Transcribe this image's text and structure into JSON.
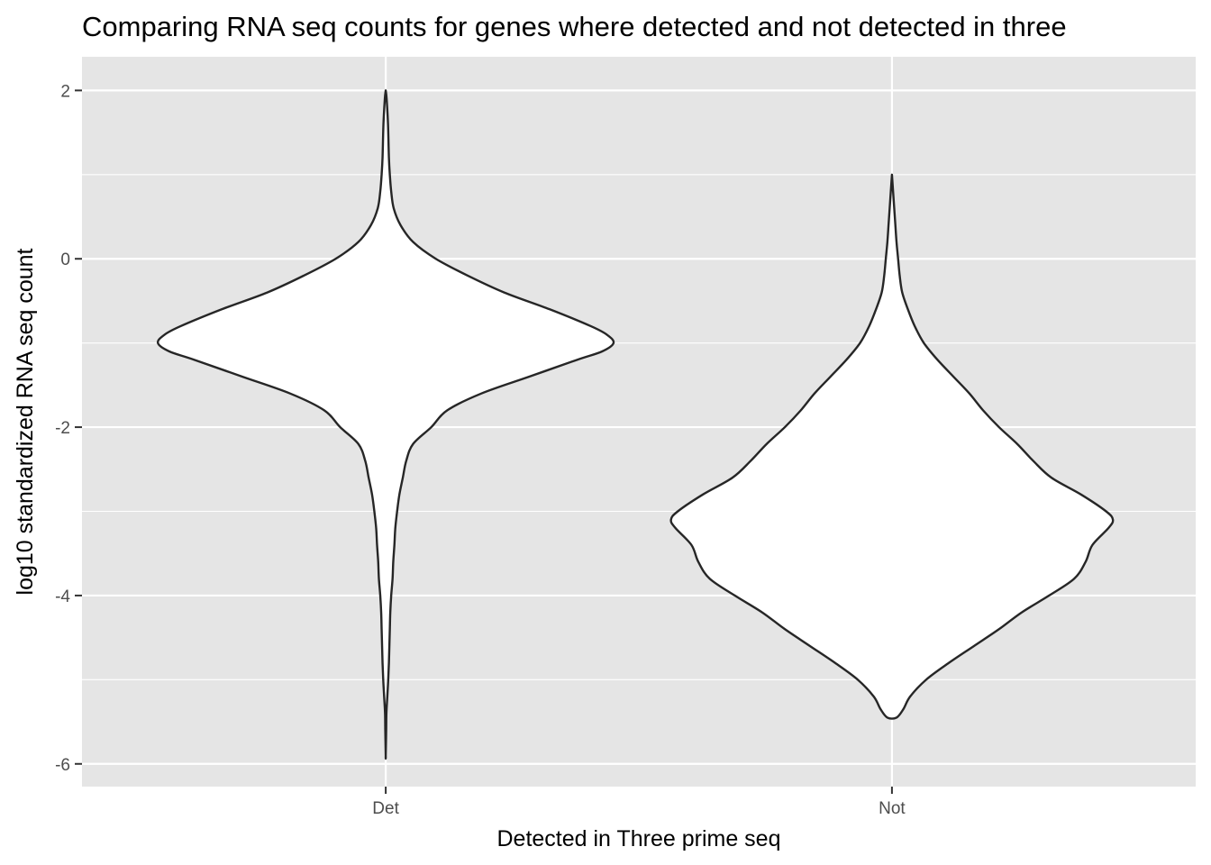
{
  "chart_data": {
    "type": "violin",
    "title": "Comparing RNA seq counts for genes where detected and not detected in three",
    "xlabel": "Detected in Three prime seq",
    "ylabel": "log10 standardized RNA seq count",
    "categories": [
      "Det",
      "Not"
    ],
    "y_ticks": [
      2,
      0,
      -2,
      -4,
      -6
    ],
    "y_tick_labels": [
      "2",
      "0",
      "-2",
      "-4",
      "-6"
    ],
    "ylim": [
      -6.27,
      2.4
    ],
    "grid": true,
    "legend": "none",
    "colors": {
      "panel": "#e5e5e5",
      "grid": "#ffffff",
      "violin_fill": "#ffffff",
      "violin_outline": "#262626",
      "tick_text": "#4d4d4d"
    },
    "series": [
      {
        "category": "Det",
        "min": -5.9,
        "max": 2.0,
        "profile_relative_width": [
          [
            2.0,
            0.0
          ],
          [
            1.9,
            0.004
          ],
          [
            1.6,
            0.01
          ],
          [
            1.2,
            0.014
          ],
          [
            1.0,
            0.018
          ],
          [
            0.8,
            0.024
          ],
          [
            0.6,
            0.035
          ],
          [
            0.4,
            0.065
          ],
          [
            0.2,
            0.12
          ],
          [
            0.0,
            0.22
          ],
          [
            -0.2,
            0.36
          ],
          [
            -0.4,
            0.52
          ],
          [
            -0.6,
            0.72
          ],
          [
            -0.8,
            0.9
          ],
          [
            -0.9,
            0.97
          ],
          [
            -1.0,
            1.0
          ],
          [
            -1.1,
            0.95
          ],
          [
            -1.2,
            0.84
          ],
          [
            -1.4,
            0.63
          ],
          [
            -1.6,
            0.42
          ],
          [
            -1.8,
            0.27
          ],
          [
            -2.0,
            0.2
          ],
          [
            -2.2,
            0.12
          ],
          [
            -2.4,
            0.09
          ],
          [
            -2.6,
            0.075
          ],
          [
            -2.8,
            0.06
          ],
          [
            -3.0,
            0.05
          ],
          [
            -3.2,
            0.042
          ],
          [
            -3.4,
            0.038
          ],
          [
            -3.6,
            0.033
          ],
          [
            -3.8,
            0.03
          ],
          [
            -4.0,
            0.024
          ],
          [
            -4.2,
            0.02
          ],
          [
            -4.4,
            0.018
          ],
          [
            -4.6,
            0.016
          ],
          [
            -4.8,
            0.014
          ],
          [
            -5.0,
            0.011
          ],
          [
            -5.2,
            0.007
          ],
          [
            -5.4,
            0.003
          ],
          [
            -5.6,
            0.002
          ],
          [
            -5.9,
            0.0
          ]
        ]
      },
      {
        "category": "Not",
        "min": -5.45,
        "max": 1.0,
        "profile_relative_width": [
          [
            1.0,
            0.0
          ],
          [
            0.8,
            0.005
          ],
          [
            0.6,
            0.01
          ],
          [
            0.4,
            0.015
          ],
          [
            0.2,
            0.02
          ],
          [
            0.0,
            0.027
          ],
          [
            -0.2,
            0.034
          ],
          [
            -0.4,
            0.045
          ],
          [
            -0.6,
            0.07
          ],
          [
            -0.8,
            0.1
          ],
          [
            -1.0,
            0.14
          ],
          [
            -1.2,
            0.2
          ],
          [
            -1.4,
            0.27
          ],
          [
            -1.6,
            0.34
          ],
          [
            -1.8,
            0.4
          ],
          [
            -2.0,
            0.47
          ],
          [
            -2.2,
            0.55
          ],
          [
            -2.4,
            0.62
          ],
          [
            -2.6,
            0.7
          ],
          [
            -2.8,
            0.83
          ],
          [
            -3.0,
            0.94
          ],
          [
            -3.1,
            0.97
          ],
          [
            -3.2,
            0.95
          ],
          [
            -3.4,
            0.88
          ],
          [
            -3.6,
            0.85
          ],
          [
            -3.8,
            0.8
          ],
          [
            -4.0,
            0.69
          ],
          [
            -4.2,
            0.57
          ],
          [
            -4.4,
            0.47
          ],
          [
            -4.6,
            0.36
          ],
          [
            -4.8,
            0.25
          ],
          [
            -5.0,
            0.15
          ],
          [
            -5.2,
            0.08
          ],
          [
            -5.35,
            0.05
          ],
          [
            -5.45,
            0.02
          ]
        ]
      }
    ]
  }
}
